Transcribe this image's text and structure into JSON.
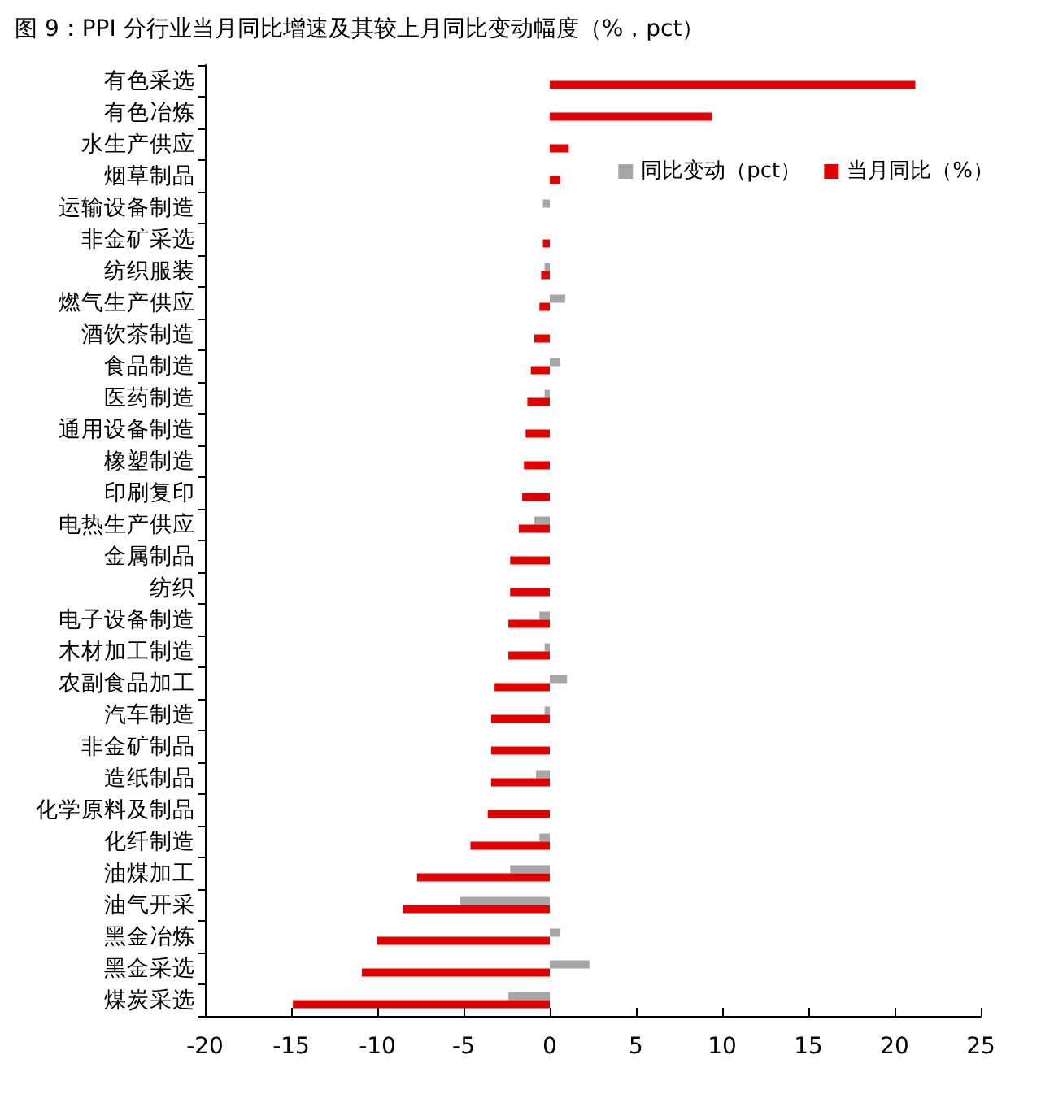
{
  "chart_data": {
    "type": "bar",
    "orientation": "horizontal",
    "title": "图 9：PPI 分行业当月同比增速及其较上月同比变动幅度（%，pct）",
    "categories": [
      "有色采选",
      "有色冶炼",
      "水生产供应",
      "烟草制品",
      "运输设备制造",
      "非金矿采选",
      "纺织服装",
      "燃气生产供应",
      "酒饮茶制造",
      "食品制造",
      "医药制造",
      "通用设备制造",
      "橡塑制造",
      "印刷复印",
      "电热生产供应",
      "金属制品",
      "纺织",
      "电子设备制造",
      "木材加工制造",
      "农副食品加工",
      "汽车制造",
      "非金矿制品",
      "造纸制品",
      "化学原料及制品",
      "化纤制造",
      "油煤加工",
      "油气开采",
      "黑金冶炼",
      "黑金采选",
      "煤炭采选"
    ],
    "series": [
      {
        "name": "同比变动（pct）",
        "color": "#a6a6a6",
        "values": [
          null,
          null,
          null,
          null,
          -0.4,
          null,
          -0.3,
          0.9,
          null,
          0.6,
          -0.3,
          null,
          null,
          null,
          -0.9,
          null,
          null,
          -0.6,
          -0.3,
          1.0,
          -0.3,
          null,
          -0.8,
          null,
          -0.6,
          -2.3,
          -5.2,
          0.6,
          2.3,
          -2.4
        ]
      },
      {
        "name": "当月同比（%）",
        "color": "#e00000",
        "values": [
          21.2,
          9.4,
          1.1,
          0.6,
          0,
          -0.4,
          -0.5,
          -0.6,
          -0.9,
          -1.1,
          -1.3,
          -1.4,
          -1.5,
          -1.6,
          -1.8,
          -2.3,
          -2.3,
          -2.4,
          -2.4,
          -3.2,
          -3.4,
          -3.4,
          -3.4,
          -3.6,
          -4.6,
          -7.7,
          -8.5,
          -10.0,
          -10.9,
          -14.9
        ]
      }
    ],
    "xlim": [
      -20,
      25
    ],
    "xticks": [
      -20,
      -15,
      -10,
      -5,
      0,
      5,
      10,
      15,
      20,
      25
    ],
    "legend": "top right",
    "grid": false
  }
}
